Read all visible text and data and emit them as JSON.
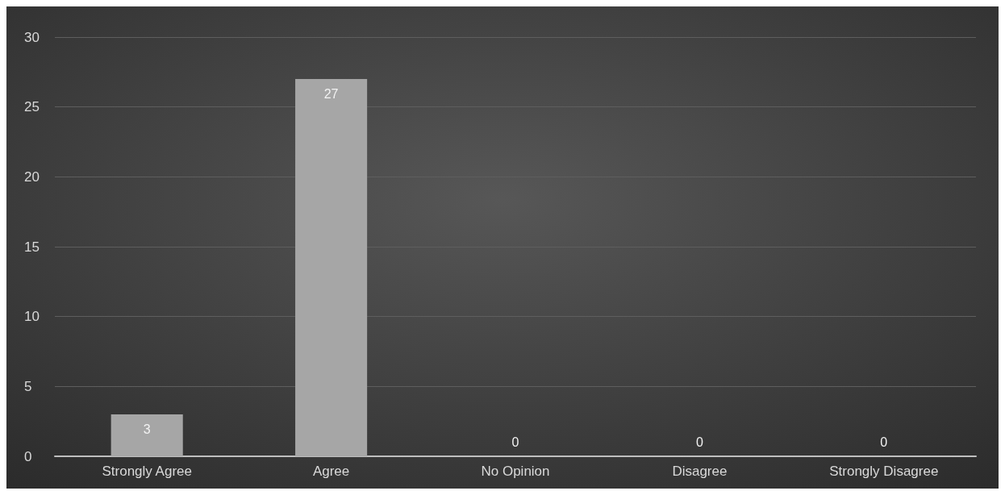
{
  "chart_data": {
    "type": "bar",
    "categories": [
      "Strongly Agree",
      "Agree",
      "No Opinion",
      "Disagree",
      "Strongly Disagree"
    ],
    "values": [
      3,
      27,
      0,
      0,
      0
    ],
    "color": "#a6a6a6",
    "ylim": [
      0,
      30
    ],
    "yticks": [
      0,
      5,
      10,
      15,
      20,
      25,
      30
    ],
    "grid": "y",
    "data_labels": true
  }
}
